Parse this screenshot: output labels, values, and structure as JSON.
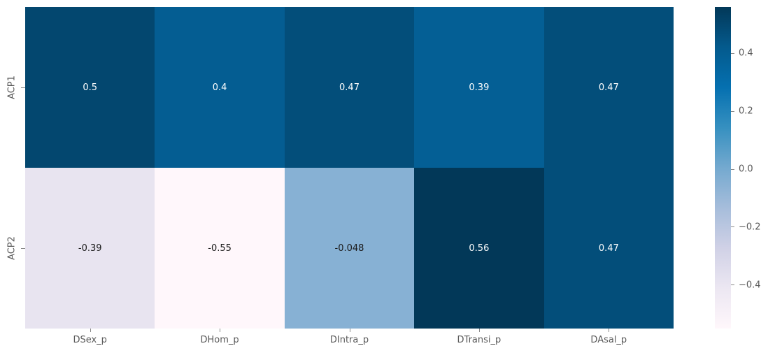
{
  "figure": {
    "background_color": "#ffffff",
    "tick_text_color": "#595959",
    "tick_mark_color": "#8a8a8a"
  },
  "chart_data": {
    "type": "heatmap",
    "title": "",
    "xlabel": "",
    "ylabel": "",
    "rows": [
      "ACP1",
      "ACP2"
    ],
    "columns": [
      "DSex_p",
      "DHom_p",
      "DIntra_p",
      "DTransi_p",
      "DAsal_p"
    ],
    "values": [
      [
        0.5,
        0.4,
        0.47,
        0.39,
        0.47
      ],
      [
        -0.39,
        -0.55,
        -0.048,
        0.56,
        0.47
      ]
    ],
    "annotations": [
      [
        "0.5",
        "0.4",
        "0.47",
        "0.39",
        "0.47"
      ],
      [
        "-0.39",
        "-0.55",
        "-0.048",
        "0.56",
        "0.47"
      ]
    ],
    "cell_colors": [
      [
        "#03476f",
        "#045d92",
        "#034e7a",
        "#045f95",
        "#034e7a"
      ],
      [
        "#e8e4f0",
        "#fff7fb",
        "#87b1d4",
        "#023858",
        "#034e7a"
      ]
    ],
    "cell_text_colors": [
      [
        "#ffffff",
        "#ffffff",
        "#ffffff",
        "#ffffff",
        "#ffffff"
      ],
      [
        "#1a1a1a",
        "#1a1a1a",
        "#1a1a1a",
        "#ffffff",
        "#ffffff"
      ]
    ],
    "vmin": -0.55,
    "vmax": 0.56,
    "colormap": "PuBu",
    "grid": false,
    "legend_position": "none",
    "colorbar": {
      "position": "right",
      "tick_values": [
        0.4,
        0.2,
        0.0,
        -0.2,
        -0.4
      ],
      "tick_labels": [
        "0.4",
        "0.2",
        "0.0",
        "−0.2",
        "−0.4"
      ],
      "gradient_stops": [
        {
          "color": "#fff7fb",
          "pos": 0
        },
        {
          "color": "#ece7f2",
          "pos": 12.5
        },
        {
          "color": "#d0d1e6",
          "pos": 25
        },
        {
          "color": "#a6bddb",
          "pos": 37.5
        },
        {
          "color": "#74a9cf",
          "pos": 50
        },
        {
          "color": "#3690c0",
          "pos": 62.5
        },
        {
          "color": "#0570b0",
          "pos": 75
        },
        {
          "color": "#045a8d",
          "pos": 87.5
        },
        {
          "color": "#023858",
          "pos": 100
        }
      ]
    }
  }
}
